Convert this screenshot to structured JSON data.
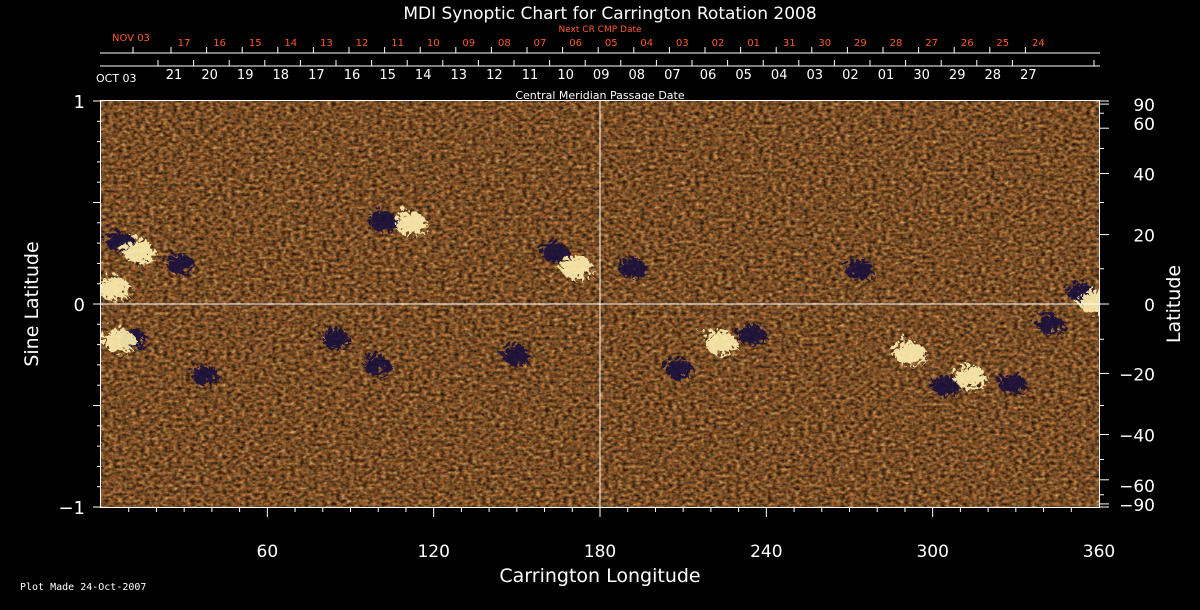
{
  "chart_data": {
    "type": "heatmap",
    "title": "MDI Synoptic Chart for Carrington Rotation 2008",
    "xlabel": "Carrington Longitude",
    "ylabel_left": "Sine Latitude",
    "ylabel_right": "Latitude",
    "xlim": [
      0,
      360
    ],
    "ylim": [
      -1,
      1
    ],
    "x_ticks": [
      "60",
      "120",
      "180",
      "240",
      "300",
      "360"
    ],
    "x_tick_values": [
      60,
      120,
      180,
      240,
      300,
      360
    ],
    "y_left_ticks": [
      "1",
      "0",
      "−1"
    ],
    "y_left_tick_values": [
      1,
      0,
      -1
    ],
    "y_right_ticks": [
      "90",
      "60",
      "40",
      "20",
      "0",
      "−20",
      "−40",
      "−60",
      "−90"
    ],
    "y_right_tick_values": [
      90,
      60,
      40,
      20,
      0,
      -20,
      -40,
      -60,
      -90
    ],
    "top_axis_title": "Central Meridian Passage Date",
    "top_axis_month_start": "OCT 03",
    "top_axis_dates": [
      "21",
      "20",
      "19",
      "18",
      "17",
      "16",
      "15",
      "14",
      "13",
      "12",
      "11",
      "10",
      "09",
      "08",
      "07",
      "06",
      "05",
      "04",
      "03",
      "02",
      "01",
      "30",
      "29",
      "28",
      "27"
    ],
    "next_cr_title": "Next CR CMP Date",
    "next_cr_month_start": "NOV 03",
    "next_cr_dates": [
      "17",
      "16",
      "15",
      "14",
      "13",
      "12",
      "11",
      "10",
      "09",
      "08",
      "07",
      "06",
      "05",
      "04",
      "03",
      "02",
      "01",
      "31",
      "30",
      "29",
      "28",
      "27",
      "26",
      "25",
      "24"
    ],
    "grid": "crosshair at 180 longitude and 0 latitude",
    "colormap": [
      "#1a0a3a",
      "#7a1208",
      "#d8380c",
      "#f08a30",
      "#fff0b0"
    ],
    "active_regions": [
      {
        "lon": 5,
        "sinlat": 0.33,
        "polarity": "negative"
      },
      {
        "lon": 12,
        "sinlat": 0.28,
        "polarity": "positive"
      },
      {
        "lon": 3,
        "sinlat": 0.1,
        "polarity": "positive"
      },
      {
        "lon": 10,
        "sinlat": -0.15,
        "polarity": "negative"
      },
      {
        "lon": 5,
        "sinlat": -0.16,
        "polarity": "positive"
      },
      {
        "lon": 27,
        "sinlat": 0.22,
        "polarity": "negative"
      },
      {
        "lon": 36,
        "sinlat": -0.33,
        "polarity": "negative"
      },
      {
        "lon": 100,
        "sinlat": 0.43,
        "polarity": "negative"
      },
      {
        "lon": 110,
        "sinlat": 0.42,
        "polarity": "positive"
      },
      {
        "lon": 83,
        "sinlat": -0.15,
        "polarity": "negative"
      },
      {
        "lon": 98,
        "sinlat": -0.28,
        "polarity": "negative"
      },
      {
        "lon": 162,
        "sinlat": 0.28,
        "polarity": "negative"
      },
      {
        "lon": 170,
        "sinlat": 0.2,
        "polarity": "positive"
      },
      {
        "lon": 148,
        "sinlat": -0.23,
        "polarity": "negative"
      },
      {
        "lon": 190,
        "sinlat": 0.2,
        "polarity": "negative"
      },
      {
        "lon": 207,
        "sinlat": -0.3,
        "polarity": "negative"
      },
      {
        "lon": 222,
        "sinlat": -0.17,
        "polarity": "positive"
      },
      {
        "lon": 233,
        "sinlat": -0.13,
        "polarity": "negative"
      },
      {
        "lon": 272,
        "sinlat": 0.19,
        "polarity": "negative"
      },
      {
        "lon": 290,
        "sinlat": -0.22,
        "polarity": "positive"
      },
      {
        "lon": 303,
        "sinlat": -0.38,
        "polarity": "negative"
      },
      {
        "lon": 312,
        "sinlat": -0.34,
        "polarity": "positive"
      },
      {
        "lon": 327,
        "sinlat": -0.37,
        "polarity": "negative"
      },
      {
        "lon": 341,
        "sinlat": -0.08,
        "polarity": "negative"
      },
      {
        "lon": 352,
        "sinlat": 0.08,
        "polarity": "negative"
      },
      {
        "lon": 357,
        "sinlat": 0.03,
        "polarity": "positive"
      }
    ]
  },
  "footer": {
    "plot_made": "Plot Made 24-Oct-2007"
  }
}
